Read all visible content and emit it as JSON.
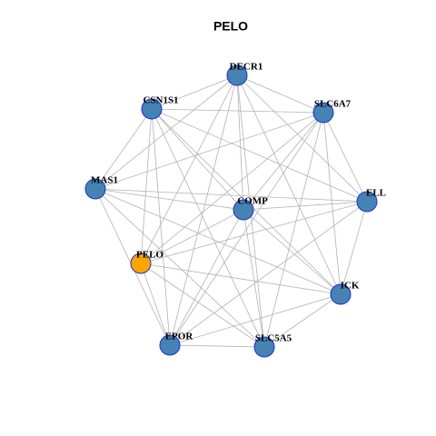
{
  "title": "PELO",
  "nodes": [
    {
      "label": "DECR1",
      "color": "#4682b4"
    },
    {
      "label": "CSN1S1",
      "color": "#4682b4"
    },
    {
      "label": "SLC6A7",
      "color": "#4682b4"
    },
    {
      "label": "MAS1",
      "color": "#4682b4"
    },
    {
      "label": "COMP",
      "color": "#4682b4"
    },
    {
      "label": "ELL",
      "color": "#4682b4"
    },
    {
      "label": "PELO",
      "color": "#ffa500"
    },
    {
      "label": "ICK",
      "color": "#4682b4"
    },
    {
      "label": "EPOR",
      "color": "#4682b4"
    },
    {
      "label": "SLC5A5",
      "color": "#4682b4"
    }
  ]
}
